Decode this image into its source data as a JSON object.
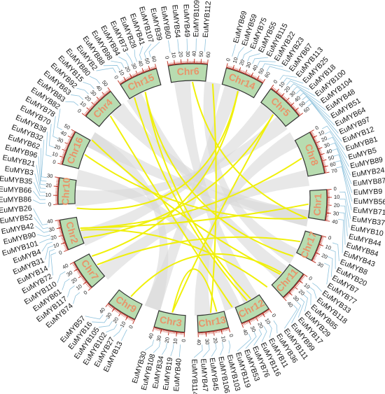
{
  "chromosomes": [
    {
      "name": "Chr6",
      "ticks": [
        0,
        10,
        20,
        30,
        40,
        50,
        60
      ],
      "genes": [
        "EuMYB60",
        "EuMYB54",
        "EuMYB49",
        "EuMYB109",
        "EuMYB112"
      ]
    },
    {
      "name": "Chr14",
      "ticks": [
        0,
        10,
        20,
        30,
        40,
        50,
        60
      ],
      "genes": [
        "EuMYB69",
        "EuMYB59",
        "EuMYB75",
        "EuMYB55",
        "EuMYB115",
        "EuMYB22",
        "EuMYB23",
        "EuMYB67"
      ]
    },
    {
      "name": "Chr5",
      "ticks": [
        0,
        10,
        20,
        30,
        40,
        50,
        60
      ],
      "genes": [
        "EuMYB113",
        "EuMYB25",
        "EuMYB18",
        "EuMYB100",
        "EuMYB104",
        "EuMYB48",
        "EuMYB51",
        "EuMYB64",
        "EuMYB97",
        "EuMYB12"
      ]
    },
    {
      "name": "Chr8",
      "ticks": [
        0,
        10,
        20,
        30,
        40,
        50,
        60,
        70
      ],
      "genes": [
        "EuMYB81",
        "EuMYB5",
        "EuMYB89",
        "EuMYB24",
        "EuMYB87",
        "EuMYB9",
        "EuMYB56",
        "EuMYB71"
      ]
    },
    {
      "name": "Chr1",
      "ticks": [
        0,
        10,
        20,
        30,
        40
      ],
      "genes": [
        "EuMYB37",
        "EuMYB10",
        "EuMYB44",
        "EuMYB84",
        "EuMYB43"
      ]
    },
    {
      "name": "Chr17",
      "ticks": [
        0,
        10,
        20,
        30
      ],
      "genes": [
        "EuMYB8",
        "EuMYB20",
        "EuMYB7",
        "EuMYB77"
      ]
    },
    {
      "name": "Chr11",
      "ticks": [
        0,
        10,
        20,
        30,
        40
      ],
      "genes": [
        "EuMYB33",
        "EuMYB118",
        "EuMYB85",
        "EuMYB29",
        "EuMYB17",
        "EuMYB99",
        "EuMYB111"
      ]
    },
    {
      "name": "Chr12",
      "ticks": [
        0,
        10,
        20,
        30,
        40
      ],
      "genes": [
        "EuMYB36",
        "EuMYB11",
        "EuMYB116",
        "EuMYB76",
        "EuMYB53",
        "EuMYB119"
      ]
    },
    {
      "name": "Chr13",
      "ticks": [
        0,
        10,
        20,
        30,
        40
      ],
      "genes": [
        "EuMYB103",
        "EuMYB106",
        "EuMYB45",
        "EuMYB47",
        "EuMYB114"
      ]
    },
    {
      "name": "Chr3",
      "ticks": [
        0,
        10,
        20,
        30,
        40
      ],
      "genes": [
        "EuMYB40",
        "EuMYB19",
        "EuMYB34",
        "EuMYB108",
        "EuMYB30"
      ]
    },
    {
      "name": "Chr9",
      "ticks": [
        0,
        10,
        20,
        30,
        40
      ],
      "genes": [
        "EuMYB13",
        "EuMYB27",
        "EuMYB102",
        "EuMYB105",
        "EuMYB16",
        "EuMYB57"
      ]
    },
    {
      "name": "Chr7",
      "ticks": [
        0,
        10,
        20,
        30,
        40
      ],
      "genes": [
        "EuMYB74",
        "EuMYB117",
        "EuMYB61",
        "EuMYB110"
      ]
    },
    {
      "name": "Chr2",
      "ticks": [
        0,
        10,
        20,
        30,
        40
      ],
      "genes": [
        "EuMYB72",
        "EuMYB14",
        "EuMYB31",
        "EuMYB4",
        "EuMYB101",
        "EuMYB90",
        "EuMYB42",
        "EuMYB52",
        "EuMYB26"
      ]
    },
    {
      "name": "Chr10",
      "ticks": [
        0,
        10,
        20,
        30
      ],
      "genes": [
        "EuMYB86",
        "EuMYB66",
        "EuMYB35",
        "EuMYB3",
        "EuMYB21",
        "EuMYB96",
        "EuMYB62",
        "EuMYB32"
      ]
    },
    {
      "name": "Chr16",
      "ticks": [
        0,
        10,
        20,
        30,
        40,
        50
      ],
      "genes": [
        "EuMYB38",
        "EuMYB70",
        "EuMYB78",
        "EuMYB82"
      ]
    },
    {
      "name": "Chr4",
      "ticks": [
        0,
        10,
        20,
        30,
        40,
        50
      ],
      "genes": [
        "EuMYB83",
        "EuMYB63",
        "EuMYB92",
        "EuMYB15",
        "EuMYB80"
      ]
    },
    {
      "name": "Chr15",
      "ticks": [
        0,
        10,
        20,
        30,
        40,
        50,
        60
      ],
      "genes": [
        "EuMYB2",
        "EuMYB88",
        "EuMYB98",
        "EuMYB94",
        "EuMYB73",
        "EuMYB28",
        "EuMYB41",
        "EuMYB107",
        "EuMYB39"
      ]
    }
  ]
}
